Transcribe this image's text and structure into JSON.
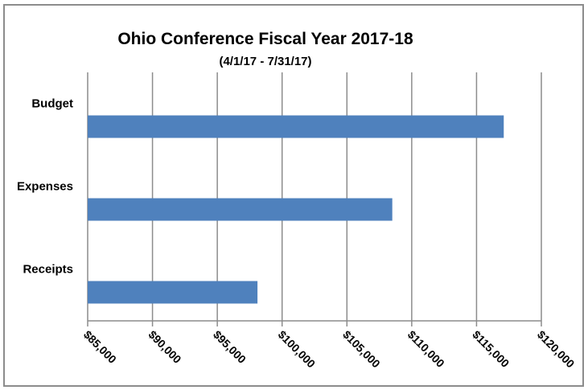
{
  "chart_data": {
    "type": "bar",
    "orientation": "horizontal",
    "title": "Ohio Conference Fiscal Year 2017-18",
    "subtitle": "(4/1/17 - 7/31/17)",
    "categories": [
      "Budget",
      "Expenses",
      "Receipts"
    ],
    "values": [
      117100,
      108500,
      98100
    ],
    "xlim": [
      85000,
      120000
    ],
    "x_ticks": [
      "$85,000",
      "$90,000",
      "$95,000",
      "$100,000",
      "$105,000",
      "$110,000",
      "$115,000",
      "$120,000"
    ],
    "x_tick_values": [
      85000,
      90000,
      95000,
      100000,
      105000,
      110000,
      115000,
      120000
    ],
    "grid": "vertical",
    "legend": "none",
    "bar_color": "#4f81bd"
  }
}
